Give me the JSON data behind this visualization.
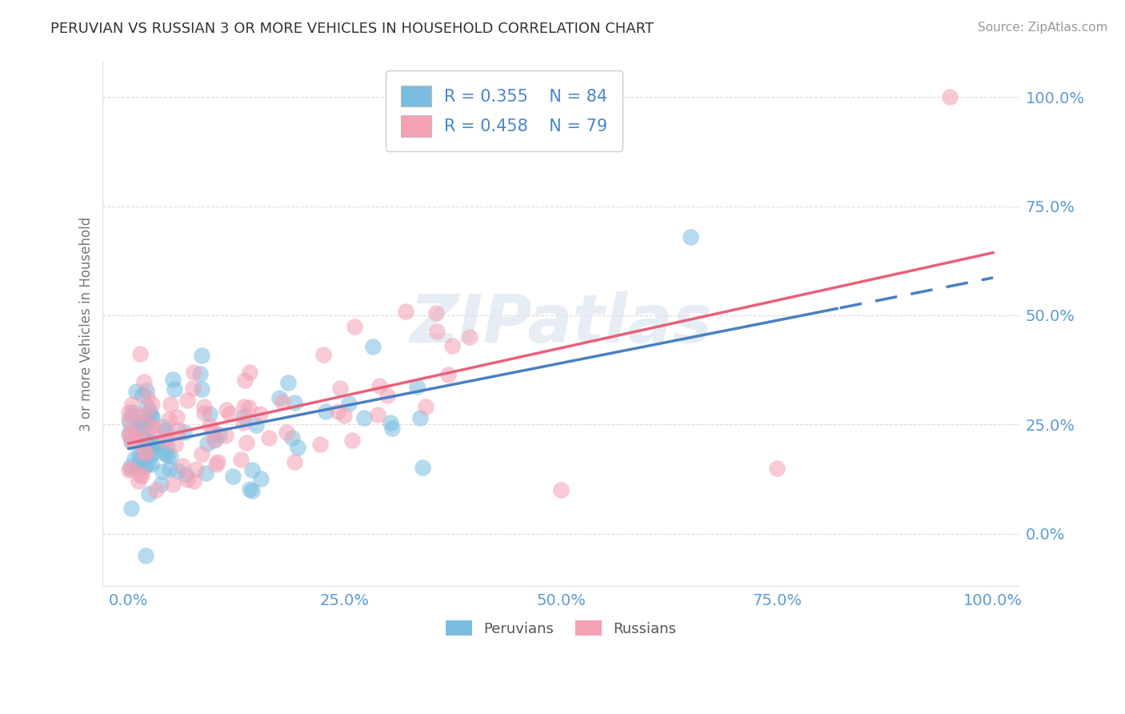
{
  "title": "PERUVIAN VS RUSSIAN 3 OR MORE VEHICLES IN HOUSEHOLD CORRELATION CHART",
  "source": "Source: ZipAtlas.com",
  "ylabel": "3 or more Vehicles in Household",
  "xticks": [
    0,
    25,
    50,
    75,
    100
  ],
  "yticks": [
    0,
    25,
    50,
    75,
    100
  ],
  "xticklabels": [
    "0.0%",
    "25.0%",
    "50.0%",
    "75.0%",
    "100.0%"
  ],
  "yticklabels": [
    "0.0%",
    "25.0%",
    "50.0%",
    "75.0%",
    "100.0%"
  ],
  "peruvian_color": "#7bbde0",
  "russian_color": "#f4a0b5",
  "peruvian_line_color": "#4a7fc1",
  "russian_line_color": "#e8607a",
  "watermark_text": "ZIPatlas",
  "watermark_color": "#dce6f0",
  "grid_color": "#cccccc",
  "background_color": "#ffffff",
  "title_color": "#333333",
  "source_color": "#999999",
  "tick_color": "#5b9bd5",
  "ylabel_color": "#777777",
  "legend_text_color": "#4a86c8",
  "legend_label1": "R = 0.355    N = 84",
  "legend_label2": "R = 0.458    N = 79",
  "bottom_legend_labels": [
    "Peruvians",
    "Russians"
  ],
  "peru_intercept": 20.0,
  "peru_slope": 0.32,
  "rus_intercept": 22.0,
  "rus_slope": 0.45
}
